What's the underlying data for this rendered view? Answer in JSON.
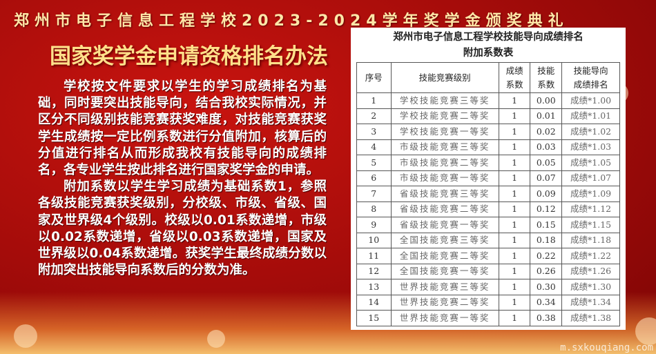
{
  "header": {
    "top_title": "郑州市电子信息工程学校2023-2024学年奖学金颁奖典礼",
    "main_title": "国家奖学金申请资格排名办法"
  },
  "body": {
    "paragraph_1": "学校按文件要求以学生的学习成绩排名为基础，同时要突出技能导向，结合我校实际情况，并区分不同级别技能竞赛获奖难度，对技能竞赛获奖学生成绩按一定比例系数进行分值附加，核算后的分值进行排名从而形成我校有技能导向的成绩排名，各专业学生按此排名进行国家奖学金的申请。",
    "paragraph_2": "附加系数以学生学习成绩为基础系数1，参照各级技能竞赛获奖级别，分校级、市级、省级、国家及世界级4个级别。校级以0.01系数递增，市级以0.02系数递增，省级以0.03系数递增，国家及世界级以0.04系数递增。获奖学生最终成绩分数以附加突出技能导向系数后的分数为准。"
  },
  "table": {
    "title_line1": "郑州市电子信息工程学校技能导向成绩排名",
    "title_line2": "附加系数表",
    "headers": [
      "序号",
      "技能竞赛级别",
      "成绩系数",
      "技能系数",
      "技能导向成绩排名"
    ],
    "rows": [
      [
        "1",
        "学校技能竞赛三等奖",
        "1",
        "0.00",
        "成绩*1.00"
      ],
      [
        "2",
        "学校技能竞赛二等奖",
        "1",
        "0.01",
        "成绩*1.01"
      ],
      [
        "3",
        "学校技能竞赛一等奖",
        "1",
        "0.02",
        "成绩*1.02"
      ],
      [
        "4",
        "市级技能竞赛三等奖",
        "1",
        "0.03",
        "成绩*1.03"
      ],
      [
        "5",
        "市级技能竞赛二等奖",
        "1",
        "0.05",
        "成绩*1.05"
      ],
      [
        "6",
        "市级技能竞赛一等奖",
        "1",
        "0.07",
        "成绩*1.07"
      ],
      [
        "7",
        "省级技能竞赛三等奖",
        "1",
        "0.09",
        "成绩*1.09"
      ],
      [
        "8",
        "省级技能竞赛二等奖",
        "1",
        "0.12",
        "成绩*1.12"
      ],
      [
        "9",
        "省级技能竞赛一等奖",
        "1",
        "0.15",
        "成绩*1.15"
      ],
      [
        "10",
        "全国技能竞赛三等奖",
        "1",
        "0.18",
        "成绩*1.18"
      ],
      [
        "11",
        "全国技能竞赛二等奖",
        "1",
        "0.22",
        "成绩*1.22"
      ],
      [
        "12",
        "全国技能竞赛一等奖",
        "1",
        "0.26",
        "成绩*1.26"
      ],
      [
        "13",
        "世界技能竞赛三等奖",
        "1",
        "0.30",
        "成绩*1.30"
      ],
      [
        "14",
        "世界技能竞赛二等奖",
        "1",
        "0.34",
        "成绩*1.34"
      ],
      [
        "15",
        "世界技能竞赛一等奖",
        "1",
        "0.38",
        "成绩*1.38"
      ]
    ]
  },
  "watermark": "m.sxkouqiang.com",
  "colors": {
    "background": "#a50c0a",
    "title_gold": "#ffe08a"
  }
}
